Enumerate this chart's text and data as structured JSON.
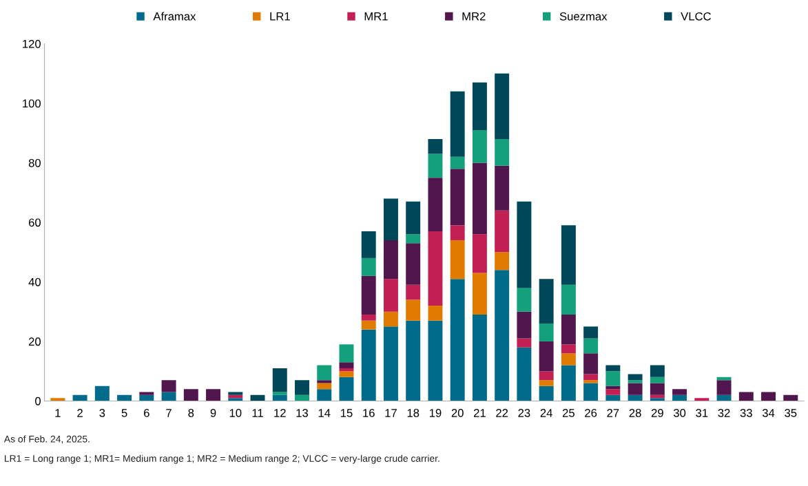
{
  "chart_data": {
    "type": "bar",
    "stacked": true,
    "legend": "top",
    "grid": false,
    "categories": [
      "1",
      "2",
      "3",
      "5",
      "6",
      "7",
      "8",
      "9",
      "10",
      "11",
      "12",
      "13",
      "14",
      "15",
      "16",
      "17",
      "18",
      "19",
      "20",
      "21",
      "22",
      "23",
      "24",
      "25",
      "26",
      "27",
      "28",
      "29",
      "30",
      "31",
      "32",
      "33",
      "34",
      "35"
    ],
    "series": [
      {
        "name": "Aframax",
        "color": "#006b8a",
        "values": [
          0,
          2,
          5,
          2,
          2,
          3,
          0,
          0,
          1,
          0,
          2,
          0,
          4,
          8,
          24,
          25,
          27,
          27,
          41,
          29,
          44,
          18,
          5,
          12,
          6,
          2,
          2,
          1,
          2,
          0,
          2,
          0,
          0,
          0
        ]
      },
      {
        "name": "LR1",
        "color": "#e07b00",
        "values": [
          1,
          0,
          0,
          0,
          0,
          0,
          0,
          0,
          0,
          0,
          0,
          0,
          2,
          2,
          3,
          5,
          7,
          5,
          13,
          14,
          6,
          0,
          2,
          4,
          1,
          0,
          0,
          0,
          0,
          0,
          0,
          0,
          0,
          0
        ]
      },
      {
        "name": "MR1",
        "color": "#c21f52",
        "values": [
          0,
          0,
          0,
          0,
          0,
          0,
          0,
          0,
          1,
          0,
          0,
          0,
          0,
          1,
          2,
          11,
          5,
          25,
          5,
          13,
          14,
          3,
          3,
          3,
          2,
          2,
          0,
          1,
          0,
          1,
          0,
          0,
          0,
          0
        ]
      },
      {
        "name": "MR2",
        "color": "#52164f",
        "values": [
          0,
          0,
          0,
          0,
          1,
          4,
          4,
          4,
          0,
          0,
          0,
          0,
          1,
          2,
          13,
          13,
          14,
          18,
          19,
          24,
          15,
          9,
          10,
          10,
          7,
          1,
          4,
          4,
          2,
          0,
          5,
          3,
          3,
          2
        ]
      },
      {
        "name": "Suezmax",
        "color": "#13a07a",
        "values": [
          0,
          0,
          0,
          0,
          0,
          0,
          0,
          0,
          0,
          0,
          1,
          2,
          5,
          6,
          6,
          0,
          3,
          8,
          4,
          11,
          9,
          8,
          6,
          10,
          5,
          5,
          1,
          2,
          0,
          0,
          1,
          0,
          0,
          0
        ]
      },
      {
        "name": "VLCC",
        "color": "#00475a",
        "values": [
          0,
          0,
          0,
          0,
          0,
          0,
          0,
          0,
          1,
          2,
          8,
          5,
          0,
          0,
          9,
          14,
          11,
          5,
          22,
          16,
          22,
          29,
          15,
          20,
          4,
          2,
          2,
          4,
          0,
          0,
          0,
          0,
          0,
          0
        ]
      }
    ],
    "ylim": [
      0,
      120
    ],
    "yticks": [
      0,
      20,
      40,
      60,
      80,
      100,
      120
    ],
    "annotations": [
      "As of Feb. 24, 2025.",
      "LR1 = Long range 1; MR1= Medium range 1; MR2 = Medium range 2; VLCC = very-large crude carrier."
    ]
  }
}
